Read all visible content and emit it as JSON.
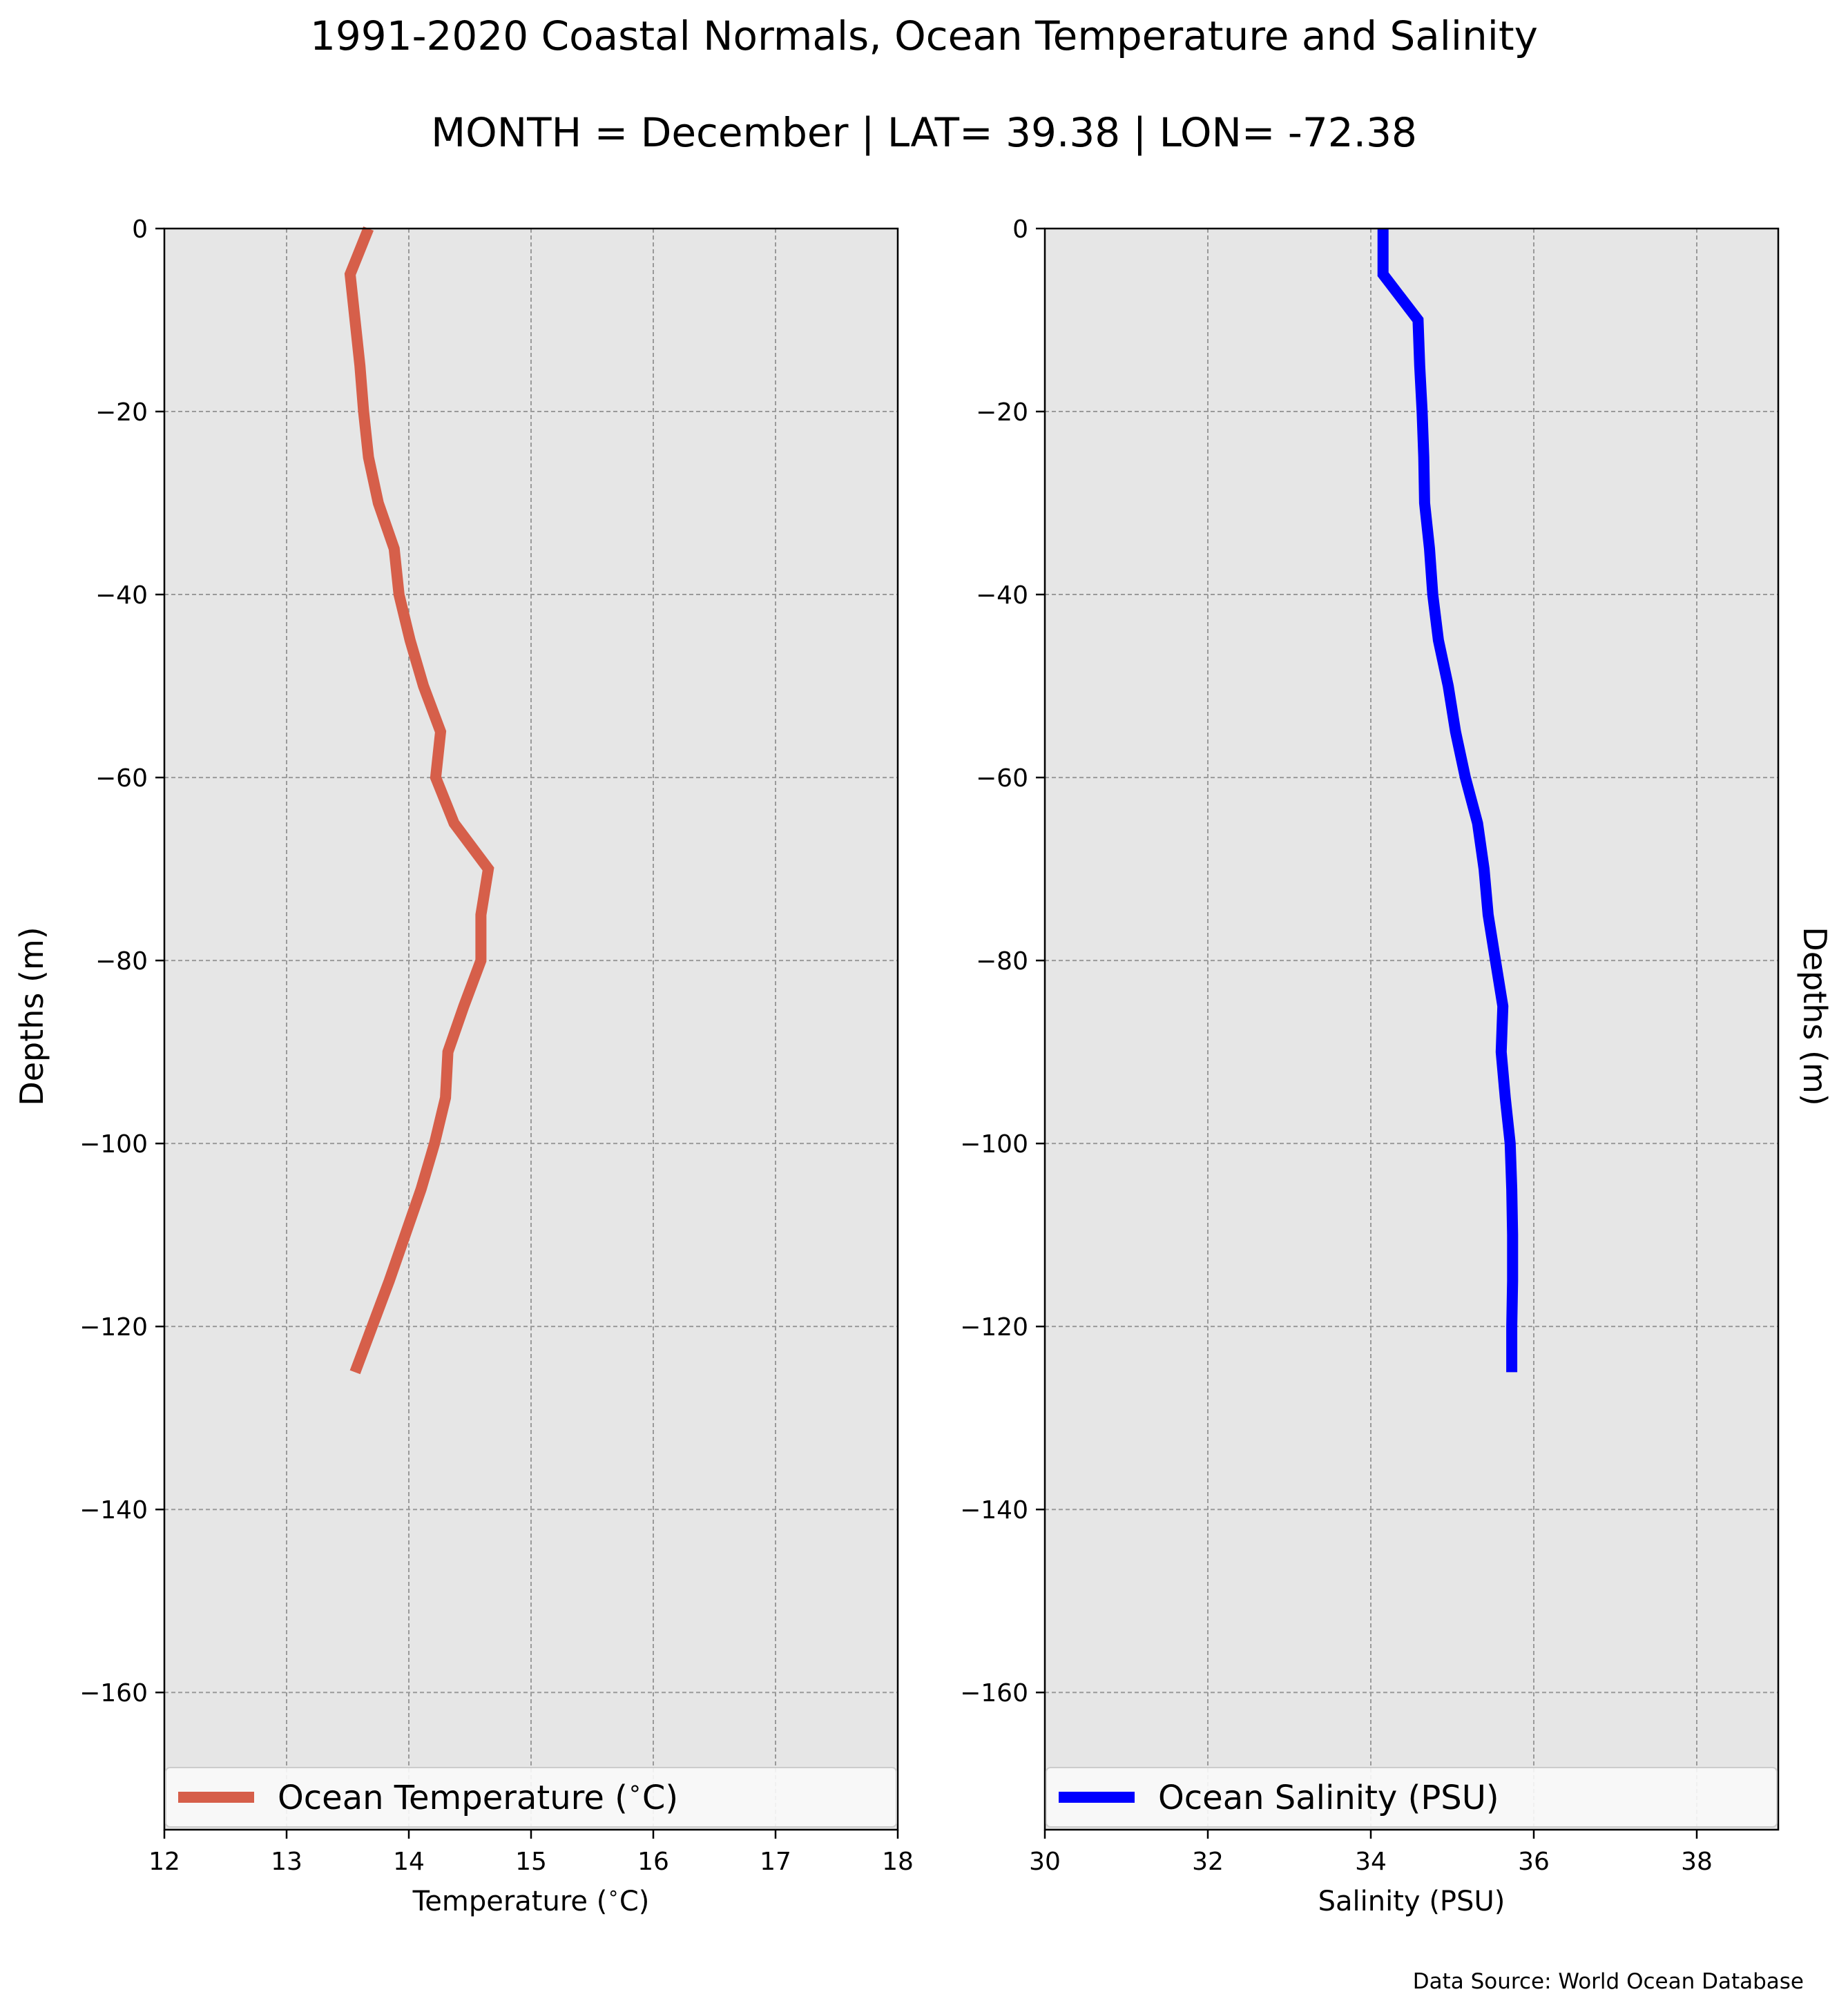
{
  "figure": {
    "title": "1991-2020 Coastal Normals, Ocean Temperature and Salinity",
    "subtitle": "MONTH = December | LAT= 39.38 | LON= -72.38",
    "source_note": "Data Source: World Ocean Database"
  },
  "colors": {
    "temperature_line": "#D65F4A",
    "salinity_line": "#0000FF",
    "plot_background": "#E6E6E6",
    "grid": "#9A9A9A"
  },
  "chart_data": [
    {
      "type": "line",
      "xlabel": "Temperature ($^\\circ$C)",
      "ylabel": "Depths (m)",
      "xlim": [
        12,
        18
      ],
      "ylim": [
        -175,
        0
      ],
      "xticks": [
        12,
        13,
        14,
        15,
        16,
        17,
        18
      ],
      "xtick_labels": [
        "12",
        "13",
        "14",
        "15",
        "16",
        "17",
        "18"
      ],
      "yticks": [
        0,
        -20,
        -40,
        -60,
        -80,
        -100,
        -120,
        -140,
        -160
      ],
      "ytick_labels": [
        "0",
        "−20",
        "−40",
        "−60",
        "−80",
        "−100",
        "−120",
        "−140",
        "−160"
      ],
      "grid": true,
      "legend_position": "bottom",
      "series": [
        {
          "name": "Ocean Temperature ($^\\circ$C)",
          "x": [
            13.67,
            13.52,
            13.56,
            13.6,
            13.63,
            13.67,
            13.75,
            13.88,
            13.92,
            14.01,
            14.12,
            14.26,
            14.22,
            14.37,
            14.65,
            14.59,
            14.59,
            14.45,
            14.32,
            14.3,
            14.21,
            14.1,
            13.97,
            13.84,
            13.7,
            13.56
          ],
          "y": [
            0,
            -5,
            -10,
            -15,
            -20,
            -25,
            -30,
            -35,
            -40,
            -45,
            -50,
            -55,
            -60,
            -65,
            -70,
            -75,
            -80,
            -85,
            -90,
            -95,
            -100,
            -105,
            -110,
            -115,
            -120,
            -125
          ]
        }
      ]
    },
    {
      "type": "line",
      "xlabel": "Salinity (PSU)",
      "ylabel": "Depths (m)",
      "xlim": [
        30,
        39
      ],
      "ylim": [
        -175,
        0
      ],
      "xticks": [
        30,
        32,
        34,
        36,
        38
      ],
      "xtick_labels": [
        "30",
        "32",
        "34",
        "36",
        "38"
      ],
      "yticks": [
        0,
        -20,
        -40,
        -60,
        -80,
        -100,
        -120,
        -140,
        -160
      ],
      "ytick_labels": [
        "0",
        "−20",
        "−40",
        "−60",
        "−80",
        "−100",
        "−120",
        "−140",
        "−160"
      ],
      "grid": true,
      "legend_position": "bottom",
      "series": [
        {
          "name": "Ocean Salinity (PSU)",
          "x": [
            34.15,
            34.15,
            34.58,
            34.6,
            34.63,
            34.65,
            34.66,
            34.72,
            34.76,
            34.83,
            34.95,
            35.04,
            35.16,
            35.31,
            35.39,
            35.44,
            35.53,
            35.62,
            35.6,
            35.65,
            35.71,
            35.73,
            35.74,
            35.74,
            35.73,
            35.73
          ],
          "y": [
            0,
            -5,
            -10,
            -15,
            -20,
            -25,
            -30,
            -35,
            -40,
            -45,
            -50,
            -55,
            -60,
            -65,
            -70,
            -75,
            -80,
            -85,
            -90,
            -95,
            -100,
            -105,
            -110,
            -115,
            -120,
            -125
          ]
        }
      ]
    }
  ]
}
